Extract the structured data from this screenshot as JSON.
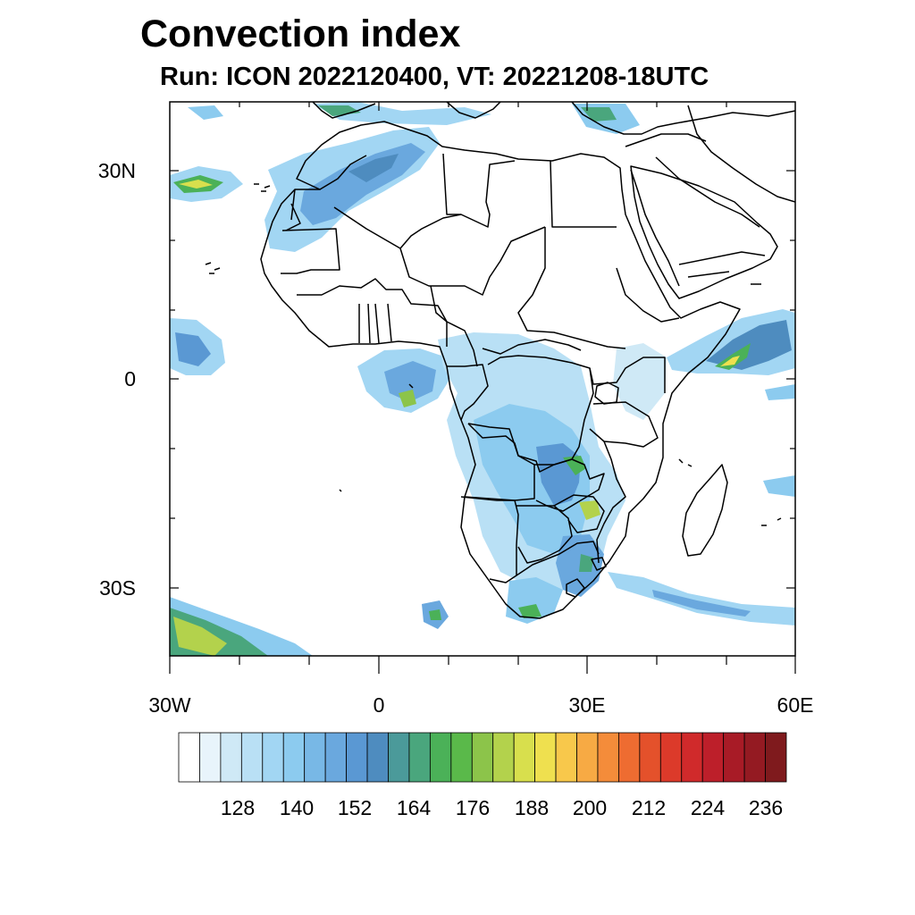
{
  "title": "Convection index",
  "subtitle": "Run: ICON 2022120400,  VT: 20221208-18UTC",
  "lat_labels": [
    "30N",
    "0",
    "30S"
  ],
  "lon_labels": [
    "30W",
    "0",
    "30E",
    "60E"
  ],
  "colorbar": {
    "colors": [
      "#ffffff",
      "#e8f4fb",
      "#cfe9f6",
      "#b9e0f5",
      "#a2d6f3",
      "#8ccbef",
      "#78b8e6",
      "#6aa8de",
      "#5a98d3",
      "#4e8cbf",
      "#4b9a9a",
      "#4aa67d",
      "#4bb158",
      "#5ab94a",
      "#8cc44a",
      "#b3d24c",
      "#d8df4d",
      "#efe04f",
      "#f8c84b",
      "#f7aa44",
      "#f48c3a",
      "#ee6c31",
      "#e4512b",
      "#dc3a2a",
      "#d02a2b",
      "#bd1f2a",
      "#a81b26",
      "#941a22",
      "#7f1a1d"
    ],
    "tick_labels": [
      "128",
      "140",
      "152",
      "164",
      "176",
      "188",
      "200",
      "212",
      "224",
      "236"
    ]
  }
}
